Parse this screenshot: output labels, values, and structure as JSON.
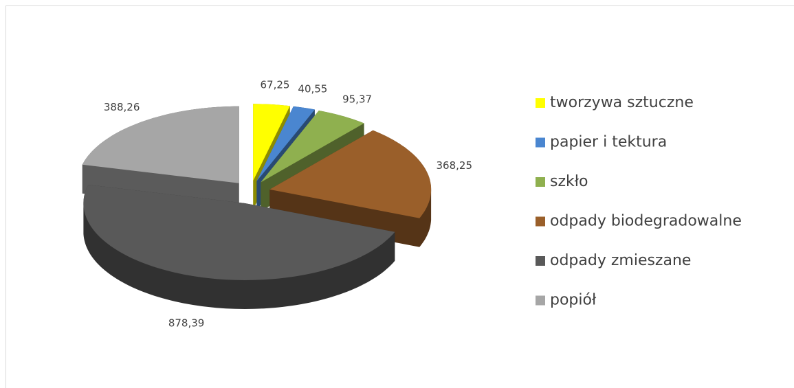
{
  "chart_data": {
    "type": "pie",
    "categories": [
      "tworzywa sztuczne",
      "papier i tektura",
      "szkło",
      "odpady biodegradowalne",
      "odpady zmieszane",
      "popiół"
    ],
    "values": [
      67.25,
      40.55,
      95.37,
      368.25,
      878.39,
      388.26
    ],
    "value_labels": [
      "67,25",
      "40,55",
      "95,37",
      "368,25",
      "878,39",
      "388,26"
    ],
    "colors": [
      "#ffff00",
      "#4a86d0",
      "#8fb04f",
      "#9a5f2a",
      "#595959",
      "#a6a6a6"
    ],
    "legend": "right"
  }
}
